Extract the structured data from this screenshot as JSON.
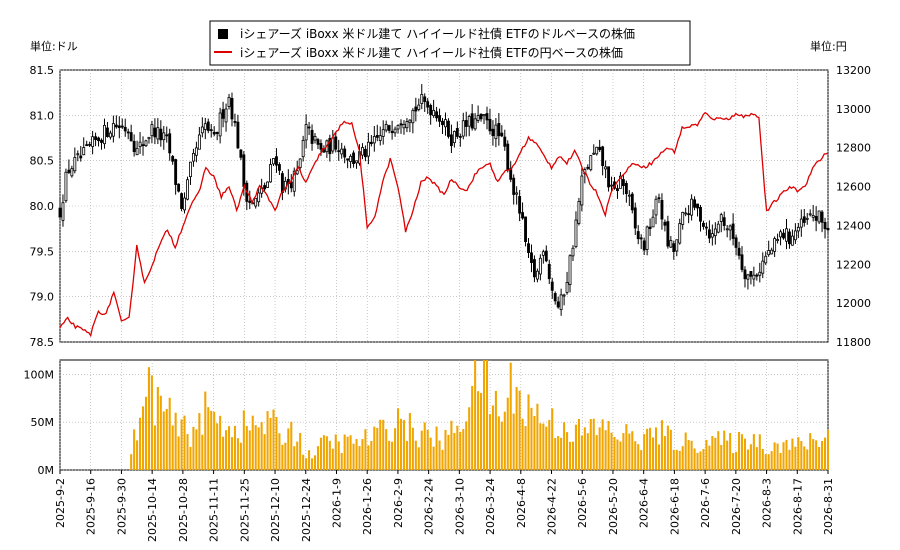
{
  "chart_data": {
    "type": "candlestick+line+bar",
    "legend": [
      {
        "name": "iシェアーズ iBoxx 米ドル建て ハイイールド社債 ETFのドルベースの株価",
        "color": "#000000"
      },
      {
        "name": "iシェアーズ iBoxx 米ドル建て ハイイールド社債 ETFの円ベースの株価",
        "color": "#dd0000"
      }
    ],
    "left_unit_label": "単位:ドル",
    "right_unit_label": "単位:円",
    "price_ylim_usd": [
      78.5,
      81.5
    ],
    "price_yticks_usd": [
      "81.5",
      "81.0",
      "80.5",
      "80.0",
      "79.5",
      "79.0",
      "78.5"
    ],
    "price_ylim_jpy": [
      11800,
      13200
    ],
    "price_yticks_jpy": [
      "13200",
      "13000",
      "12800",
      "12600",
      "12400",
      "12200",
      "12000",
      "11800"
    ],
    "volume_ylim": [
      0,
      115
    ],
    "volume_yticks": [
      {
        "v": 100,
        "label": "100M"
      },
      {
        "v": 50,
        "label": "50M"
      },
      {
        "v": 0,
        "label": "0M"
      }
    ],
    "x_tick_labels": [
      "2025-9-2",
      "2025-9-16",
      "2025-9-30",
      "2025-10-14",
      "2025-10-28",
      "2025-11-11",
      "2025-11-25",
      "2025-12-10",
      "2025-12-24",
      "2026-1-9",
      "2026-1-26",
      "2026-2-9",
      "2026-2-24",
      "2026-3-10",
      "2026-3-24",
      "2026-4-8",
      "2026-4-22",
      "2026-5-6",
      "2026-5-20",
      "2026-6-4",
      "2026-6-18",
      "2026-7-6",
      "2026-7-20",
      "2026-8-3",
      "2026-8-17",
      "2026-8-31"
    ],
    "usd_close_keypoints": [
      {
        "t": 0.0,
        "v": 79.95
      },
      {
        "t": 0.01,
        "v": 80.4
      },
      {
        "t": 0.03,
        "v": 80.55
      },
      {
        "t": 0.05,
        "v": 80.75
      },
      {
        "t": 0.07,
        "v": 80.9
      },
      {
        "t": 0.09,
        "v": 80.85
      },
      {
        "t": 0.1,
        "v": 80.6
      },
      {
        "t": 0.12,
        "v": 80.85
      },
      {
        "t": 0.14,
        "v": 80.7
      },
      {
        "t": 0.15,
        "v": 80.3
      },
      {
        "t": 0.16,
        "v": 79.95
      },
      {
        "t": 0.17,
        "v": 80.4
      },
      {
        "t": 0.18,
        "v": 80.7
      },
      {
        "t": 0.19,
        "v": 80.9
      },
      {
        "t": 0.2,
        "v": 80.7
      },
      {
        "t": 0.21,
        "v": 81.0
      },
      {
        "t": 0.22,
        "v": 81.2
      },
      {
        "t": 0.23,
        "v": 80.8
      },
      {
        "t": 0.24,
        "v": 80.2
      },
      {
        "t": 0.25,
        "v": 80.0
      },
      {
        "t": 0.27,
        "v": 80.25
      },
      {
        "t": 0.28,
        "v": 80.6
      },
      {
        "t": 0.29,
        "v": 80.2
      },
      {
        "t": 0.31,
        "v": 80.35
      },
      {
        "t": 0.32,
        "v": 80.85
      },
      {
        "t": 0.34,
        "v": 80.6
      },
      {
        "t": 0.36,
        "v": 80.7
      },
      {
        "t": 0.38,
        "v": 80.5
      },
      {
        "t": 0.4,
        "v": 80.6
      },
      {
        "t": 0.42,
        "v": 80.8
      },
      {
        "t": 0.44,
        "v": 80.95
      },
      {
        "t": 0.46,
        "v": 81.05
      },
      {
        "t": 0.47,
        "v": 81.15
      },
      {
        "t": 0.49,
        "v": 81.05
      },
      {
        "t": 0.51,
        "v": 80.75
      },
      {
        "t": 0.53,
        "v": 80.9
      },
      {
        "t": 0.55,
        "v": 80.95
      },
      {
        "t": 0.57,
        "v": 80.8
      },
      {
        "t": 0.58,
        "v": 80.6
      },
      {
        "t": 0.59,
        "v": 80.2
      },
      {
        "t": 0.6,
        "v": 79.9
      },
      {
        "t": 0.61,
        "v": 79.4
      },
      {
        "t": 0.62,
        "v": 79.2
      },
      {
        "t": 0.63,
        "v": 79.6
      },
      {
        "t": 0.64,
        "v": 79.1
      },
      {
        "t": 0.65,
        "v": 78.85
      },
      {
        "t": 0.66,
        "v": 79.2
      },
      {
        "t": 0.67,
        "v": 79.7
      },
      {
        "t": 0.68,
        "v": 80.3
      },
      {
        "t": 0.69,
        "v": 80.5
      },
      {
        "t": 0.7,
        "v": 80.6
      },
      {
        "t": 0.71,
        "v": 80.4
      },
      {
        "t": 0.72,
        "v": 80.1
      },
      {
        "t": 0.73,
        "v": 80.3
      },
      {
        "t": 0.74,
        "v": 80.1
      },
      {
        "t": 0.75,
        "v": 79.7
      },
      {
        "t": 0.76,
        "v": 79.55
      },
      {
        "t": 0.77,
        "v": 79.85
      },
      {
        "t": 0.78,
        "v": 80.1
      },
      {
        "t": 0.79,
        "v": 79.6
      },
      {
        "t": 0.8,
        "v": 79.5
      },
      {
        "t": 0.81,
        "v": 79.85
      },
      {
        "t": 0.82,
        "v": 80.0
      },
      {
        "t": 0.83,
        "v": 79.95
      },
      {
        "t": 0.84,
        "v": 79.8
      },
      {
        "t": 0.85,
        "v": 79.65
      },
      {
        "t": 0.86,
        "v": 79.9
      },
      {
        "t": 0.87,
        "v": 79.75
      },
      {
        "t": 0.88,
        "v": 79.6
      },
      {
        "t": 0.89,
        "v": 79.3
      },
      {
        "t": 0.9,
        "v": 79.2
      },
      {
        "t": 0.91,
        "v": 79.3
      },
      {
        "t": 0.92,
        "v": 79.45
      },
      {
        "t": 0.93,
        "v": 79.55
      },
      {
        "t": 0.94,
        "v": 79.7
      },
      {
        "t": 0.95,
        "v": 79.65
      },
      {
        "t": 0.96,
        "v": 79.75
      },
      {
        "t": 0.97,
        "v": 79.8
      },
      {
        "t": 0.98,
        "v": 79.9
      },
      {
        "t": 0.99,
        "v": 79.85
      },
      {
        "t": 1.0,
        "v": 79.75
      }
    ],
    "jpy_line_keypoints": [
      {
        "t": 0.0,
        "v": 11870
      },
      {
        "t": 0.01,
        "v": 11920
      },
      {
        "t": 0.02,
        "v": 11880
      },
      {
        "t": 0.04,
        "v": 11840
      },
      {
        "t": 0.05,
        "v": 11960
      },
      {
        "t": 0.06,
        "v": 11940
      },
      {
        "t": 0.07,
        "v": 12060
      },
      {
        "t": 0.08,
        "v": 11900
      },
      {
        "t": 0.09,
        "v": 11920
      },
      {
        "t": 0.1,
        "v": 12300
      },
      {
        "t": 0.11,
        "v": 12100
      },
      {
        "t": 0.12,
        "v": 12200
      },
      {
        "t": 0.13,
        "v": 12300
      },
      {
        "t": 0.14,
        "v": 12380
      },
      {
        "t": 0.15,
        "v": 12290
      },
      {
        "t": 0.16,
        "v": 12400
      },
      {
        "t": 0.17,
        "v": 12500
      },
      {
        "t": 0.18,
        "v": 12560
      },
      {
        "t": 0.19,
        "v": 12700
      },
      {
        "t": 0.2,
        "v": 12650
      },
      {
        "t": 0.21,
        "v": 12550
      },
      {
        "t": 0.22,
        "v": 12600
      },
      {
        "t": 0.23,
        "v": 12480
      },
      {
        "t": 0.24,
        "v": 12600
      },
      {
        "t": 0.25,
        "v": 12520
      },
      {
        "t": 0.26,
        "v": 12600
      },
      {
        "t": 0.27,
        "v": 12550
      },
      {
        "t": 0.28,
        "v": 12480
      },
      {
        "t": 0.29,
        "v": 12580
      },
      {
        "t": 0.3,
        "v": 12620
      },
      {
        "t": 0.31,
        "v": 12700
      },
      {
        "t": 0.32,
        "v": 12620
      },
      {
        "t": 0.33,
        "v": 12700
      },
      {
        "t": 0.34,
        "v": 12780
      },
      {
        "t": 0.35,
        "v": 12820
      },
      {
        "t": 0.36,
        "v": 12880
      },
      {
        "t": 0.37,
        "v": 12940
      },
      {
        "t": 0.38,
        "v": 12920
      },
      {
        "t": 0.39,
        "v": 12780
      },
      {
        "t": 0.4,
        "v": 12380
      },
      {
        "t": 0.41,
        "v": 12450
      },
      {
        "t": 0.42,
        "v": 12620
      },
      {
        "t": 0.43,
        "v": 12740
      },
      {
        "t": 0.44,
        "v": 12600
      },
      {
        "t": 0.45,
        "v": 12370
      },
      {
        "t": 0.46,
        "v": 12480
      },
      {
        "t": 0.47,
        "v": 12620
      },
      {
        "t": 0.48,
        "v": 12650
      },
      {
        "t": 0.49,
        "v": 12600
      },
      {
        "t": 0.5,
        "v": 12560
      },
      {
        "t": 0.51,
        "v": 12640
      },
      {
        "t": 0.52,
        "v": 12600
      },
      {
        "t": 0.53,
        "v": 12580
      },
      {
        "t": 0.54,
        "v": 12660
      },
      {
        "t": 0.55,
        "v": 12700
      },
      {
        "t": 0.56,
        "v": 12720
      },
      {
        "t": 0.57,
        "v": 12620
      },
      {
        "t": 0.58,
        "v": 12680
      },
      {
        "t": 0.59,
        "v": 12700
      },
      {
        "t": 0.6,
        "v": 12780
      },
      {
        "t": 0.61,
        "v": 12850
      },
      {
        "t": 0.62,
        "v": 12820
      },
      {
        "t": 0.63,
        "v": 12760
      },
      {
        "t": 0.64,
        "v": 12700
      },
      {
        "t": 0.65,
        "v": 12760
      },
      {
        "t": 0.66,
        "v": 12720
      },
      {
        "t": 0.67,
        "v": 12780
      },
      {
        "t": 0.68,
        "v": 12700
      },
      {
        "t": 0.69,
        "v": 12620
      },
      {
        "t": 0.7,
        "v": 12560
      },
      {
        "t": 0.71,
        "v": 12460
      },
      {
        "t": 0.72,
        "v": 12600
      },
      {
        "t": 0.73,
        "v": 12640
      },
      {
        "t": 0.74,
        "v": 12700
      },
      {
        "t": 0.75,
        "v": 12720
      },
      {
        "t": 0.76,
        "v": 12700
      },
      {
        "t": 0.77,
        "v": 12720
      },
      {
        "t": 0.78,
        "v": 12760
      },
      {
        "t": 0.79,
        "v": 12800
      },
      {
        "t": 0.8,
        "v": 12780
      },
      {
        "t": 0.81,
        "v": 12900
      },
      {
        "t": 0.82,
        "v": 12910
      },
      {
        "t": 0.83,
        "v": 12920
      },
      {
        "t": 0.84,
        "v": 12980
      },
      {
        "t": 0.85,
        "v": 12940
      },
      {
        "t": 0.86,
        "v": 12960
      },
      {
        "t": 0.87,
        "v": 12940
      },
      {
        "t": 0.88,
        "v": 12980
      },
      {
        "t": 0.89,
        "v": 12960
      },
      {
        "t": 0.9,
        "v": 12970
      },
      {
        "t": 0.905,
        "v": 12980
      },
      {
        "t": 0.91,
        "v": 12950
      },
      {
        "t": 0.92,
        "v": 12470
      },
      {
        "t": 0.93,
        "v": 12520
      },
      {
        "t": 0.94,
        "v": 12560
      },
      {
        "t": 0.95,
        "v": 12600
      },
      {
        "t": 0.96,
        "v": 12580
      },
      {
        "t": 0.97,
        "v": 12600
      },
      {
        "t": 0.98,
        "v": 12700
      },
      {
        "t": 0.99,
        "v": 12740
      },
      {
        "t": 1.0,
        "v": 12780
      }
    ],
    "volume_series_m": [
      {
        "t": 0.0,
        "v": 0
      },
      {
        "t": 0.09,
        "v": 0
      },
      {
        "t": 0.095,
        "v": 28
      },
      {
        "t": 0.11,
        "v": 65
      },
      {
        "t": 0.115,
        "v": 85
      },
      {
        "t": 0.13,
        "v": 70
      },
      {
        "t": 0.15,
        "v": 45
      },
      {
        "t": 0.17,
        "v": 40
      },
      {
        "t": 0.19,
        "v": 60
      },
      {
        "t": 0.21,
        "v": 50
      },
      {
        "t": 0.23,
        "v": 45
      },
      {
        "t": 0.25,
        "v": 45
      },
      {
        "t": 0.27,
        "v": 50
      },
      {
        "t": 0.29,
        "v": 38
      },
      {
        "t": 0.31,
        "v": 42
      },
      {
        "t": 0.32,
        "v": 12
      },
      {
        "t": 0.33,
        "v": 20
      },
      {
        "t": 0.35,
        "v": 30
      },
      {
        "t": 0.37,
        "v": 28
      },
      {
        "t": 0.4,
        "v": 32
      },
      {
        "t": 0.42,
        "v": 40
      },
      {
        "t": 0.44,
        "v": 55
      },
      {
        "t": 0.46,
        "v": 40
      },
      {
        "t": 0.48,
        "v": 36
      },
      {
        "t": 0.5,
        "v": 30
      },
      {
        "t": 0.52,
        "v": 50
      },
      {
        "t": 0.53,
        "v": 70
      },
      {
        "t": 0.54,
        "v": 85
      },
      {
        "t": 0.55,
        "v": 112
      },
      {
        "t": 0.56,
        "v": 72
      },
      {
        "t": 0.57,
        "v": 68
      },
      {
        "t": 0.58,
        "v": 55
      },
      {
        "t": 0.59,
        "v": 100
      },
      {
        "t": 0.6,
        "v": 70
      },
      {
        "t": 0.62,
        "v": 60
      },
      {
        "t": 0.64,
        "v": 50
      },
      {
        "t": 0.66,
        "v": 45
      },
      {
        "t": 0.68,
        "v": 38
      },
      {
        "t": 0.7,
        "v": 45
      },
      {
        "t": 0.72,
        "v": 40
      },
      {
        "t": 0.74,
        "v": 35
      },
      {
        "t": 0.76,
        "v": 32
      },
      {
        "t": 0.78,
        "v": 40
      },
      {
        "t": 0.8,
        "v": 30
      },
      {
        "t": 0.82,
        "v": 28
      },
      {
        "t": 0.84,
        "v": 30
      },
      {
        "t": 0.86,
        "v": 30
      },
      {
        "t": 0.88,
        "v": 28
      },
      {
        "t": 0.9,
        "v": 35
      },
      {
        "t": 0.92,
        "v": 25
      },
      {
        "t": 0.94,
        "v": 28
      },
      {
        "t": 0.96,
        "v": 25
      },
      {
        "t": 0.98,
        "v": 30
      },
      {
        "t": 1.0,
        "v": 36
      }
    ],
    "colors": {
      "usd": "#000000",
      "jpy": "#dd0000",
      "volume": "#f0a500",
      "grid": "#aaaaaa"
    }
  }
}
